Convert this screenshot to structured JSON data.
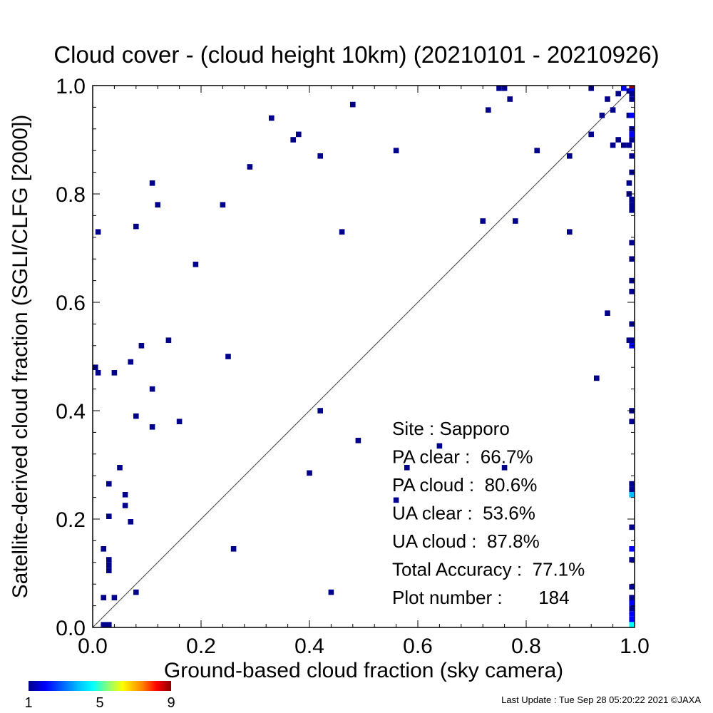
{
  "chart_data": {
    "type": "heatmap",
    "title": "Cloud cover - (cloud height 10km)  (20210101 - 20210926)",
    "xlabel": "Ground-based cloud fraction (sky camera)",
    "ylabel": "Satellite-derived cloud fraction (SGLI/CLFG [2000])",
    "xlim": [
      0.0,
      1.0
    ],
    "ylim": [
      0.0,
      1.0
    ],
    "x_ticks": [
      "0.0",
      "0.2",
      "0.4",
      "0.6",
      "0.8",
      "1.0"
    ],
    "y_ticks": [
      "0.0",
      "0.2",
      "0.4",
      "0.6",
      "0.8",
      "1.0"
    ],
    "grid": false,
    "reference_line": "1:1 diagonal",
    "colorbar": {
      "ticks": [
        "1",
        "5",
        "9"
      ],
      "range": [
        1,
        9
      ],
      "colors": [
        "#00008b",
        "#0000ff",
        "#00bfff",
        "#00ffff",
        "#7fff7f",
        "#ffff00",
        "#ff8000",
        "#ff0000",
        "#8b0000"
      ]
    },
    "stats": [
      {
        "label": "Site : ",
        "value": "Sapporo"
      },
      {
        "label": "PA clear :  ",
        "value": "66.7%"
      },
      {
        "label": "PA cloud :  ",
        "value": "80.6%"
      },
      {
        "label": "UA clear :  ",
        "value": "53.6%"
      },
      {
        "label": "UA cloud :  ",
        "value": "87.8%"
      },
      {
        "label": "Total Accuracy :  ",
        "value": "77.1%"
      },
      {
        "label": "Plot number :       ",
        "value": "184"
      }
    ],
    "points": [
      {
        "x": 0.0,
        "y": 0.48,
        "c": 1
      },
      {
        "x": 0.01,
        "y": 0.73,
        "c": 1
      },
      {
        "x": 0.01,
        "y": 0.47,
        "c": 1
      },
      {
        "x": 0.02,
        "y": 0.145,
        "c": 1
      },
      {
        "x": 0.02,
        "y": 0.055,
        "c": 1
      },
      {
        "x": 0.02,
        "y": 0.0,
        "c": 1
      },
      {
        "x": 0.03,
        "y": 0.265,
        "c": 1
      },
      {
        "x": 0.03,
        "y": 0.205,
        "c": 1
      },
      {
        "x": 0.03,
        "y": 0.125,
        "c": 1
      },
      {
        "x": 0.03,
        "y": 0.115,
        "c": 1
      },
      {
        "x": 0.03,
        "y": 0.105,
        "c": 1
      },
      {
        "x": 0.03,
        "y": 0.0,
        "c": 1
      },
      {
        "x": 0.04,
        "y": 0.47,
        "c": 1
      },
      {
        "x": 0.04,
        "y": 0.055,
        "c": 1
      },
      {
        "x": 0.05,
        "y": 0.295,
        "c": 1
      },
      {
        "x": 0.06,
        "y": 0.245,
        "c": 1
      },
      {
        "x": 0.06,
        "y": 0.225,
        "c": 1
      },
      {
        "x": 0.07,
        "y": 0.49,
        "c": 1
      },
      {
        "x": 0.07,
        "y": 0.195,
        "c": 1
      },
      {
        "x": 0.08,
        "y": 0.74,
        "c": 1
      },
      {
        "x": 0.08,
        "y": 0.39,
        "c": 1
      },
      {
        "x": 0.08,
        "y": 0.065,
        "c": 1
      },
      {
        "x": 0.09,
        "y": 0.52,
        "c": 1
      },
      {
        "x": 0.11,
        "y": 0.82,
        "c": 1
      },
      {
        "x": 0.11,
        "y": 0.44,
        "c": 1
      },
      {
        "x": 0.11,
        "y": 0.37,
        "c": 1
      },
      {
        "x": 0.12,
        "y": 0.78,
        "c": 1
      },
      {
        "x": 0.14,
        "y": 0.53,
        "c": 1
      },
      {
        "x": 0.16,
        "y": 0.38,
        "c": 1
      },
      {
        "x": 0.19,
        "y": 0.67,
        "c": 1
      },
      {
        "x": 0.24,
        "y": 0.78,
        "c": 1
      },
      {
        "x": 0.25,
        "y": 0.5,
        "c": 1
      },
      {
        "x": 0.26,
        "y": 0.145,
        "c": 1
      },
      {
        "x": 0.29,
        "y": 0.85,
        "c": 1
      },
      {
        "x": 0.33,
        "y": 0.94,
        "c": 1
      },
      {
        "x": 0.37,
        "y": 0.9,
        "c": 1
      },
      {
        "x": 0.38,
        "y": 0.91,
        "c": 1
      },
      {
        "x": 0.4,
        "y": 0.285,
        "c": 1
      },
      {
        "x": 0.42,
        "y": 0.87,
        "c": 1
      },
      {
        "x": 0.42,
        "y": 0.4,
        "c": 1
      },
      {
        "x": 0.44,
        "y": 0.065,
        "c": 1
      },
      {
        "x": 0.46,
        "y": 0.73,
        "c": 1
      },
      {
        "x": 0.48,
        "y": 0.965,
        "c": 1
      },
      {
        "x": 0.49,
        "y": 0.345,
        "c": 1
      },
      {
        "x": 0.56,
        "y": 0.88,
        "c": 1
      },
      {
        "x": 0.56,
        "y": 0.235,
        "c": 1
      },
      {
        "x": 0.58,
        "y": 0.295,
        "c": 1
      },
      {
        "x": 0.64,
        "y": 0.335,
        "c": 1
      },
      {
        "x": 0.72,
        "y": 0.75,
        "c": 1
      },
      {
        "x": 0.73,
        "y": 0.955,
        "c": 1
      },
      {
        "x": 0.75,
        "y": 1.0,
        "c": 1
      },
      {
        "x": 0.76,
        "y": 1.0,
        "c": 1
      },
      {
        "x": 0.76,
        "y": 0.295,
        "c": 1
      },
      {
        "x": 0.77,
        "y": 0.975,
        "c": 1
      },
      {
        "x": 0.78,
        "y": 0.75,
        "c": 1
      },
      {
        "x": 0.82,
        "y": 0.88,
        "c": 1
      },
      {
        "x": 0.88,
        "y": 0.87,
        "c": 1
      },
      {
        "x": 0.88,
        "y": 0.73,
        "c": 1
      },
      {
        "x": 0.92,
        "y": 1.0,
        "c": 1
      },
      {
        "x": 0.92,
        "y": 0.91,
        "c": 1
      },
      {
        "x": 0.93,
        "y": 0.46,
        "c": 1
      },
      {
        "x": 0.94,
        "y": 0.945,
        "c": 1
      },
      {
        "x": 0.95,
        "y": 0.975,
        "c": 1
      },
      {
        "x": 0.95,
        "y": 0.58,
        "c": 1
      },
      {
        "x": 0.96,
        "y": 0.955,
        "c": 1
      },
      {
        "x": 0.96,
        "y": 0.89,
        "c": 1
      },
      {
        "x": 0.97,
        "y": 0.985,
        "c": 1
      },
      {
        "x": 0.97,
        "y": 0.9,
        "c": 1
      },
      {
        "x": 0.98,
        "y": 1.0,
        "c": 2
      },
      {
        "x": 0.98,
        "y": 0.89,
        "c": 1
      },
      {
        "x": 0.99,
        "y": 0.99,
        "c": 1
      },
      {
        "x": 0.99,
        "y": 0.945,
        "c": 1
      },
      {
        "x": 0.99,
        "y": 0.89,
        "c": 1
      },
      {
        "x": 0.99,
        "y": 0.82,
        "c": 1
      },
      {
        "x": 0.99,
        "y": 0.8,
        "c": 1
      },
      {
        "x": 0.99,
        "y": 0.53,
        "c": 1
      },
      {
        "x": 1.0,
        "y": 1.0,
        "c": 9
      },
      {
        "x": 1.0,
        "y": 0.99,
        "c": 2
      },
      {
        "x": 1.0,
        "y": 0.985,
        "c": 1
      },
      {
        "x": 1.0,
        "y": 0.975,
        "c": 1
      },
      {
        "x": 1.0,
        "y": 0.945,
        "c": 2
      },
      {
        "x": 1.0,
        "y": 0.92,
        "c": 1
      },
      {
        "x": 1.0,
        "y": 0.91,
        "c": 2
      },
      {
        "x": 1.0,
        "y": 0.9,
        "c": 1
      },
      {
        "x": 1.0,
        "y": 0.87,
        "c": 1
      },
      {
        "x": 1.0,
        "y": 0.84,
        "c": 1
      },
      {
        "x": 1.0,
        "y": 0.79,
        "c": 1
      },
      {
        "x": 1.0,
        "y": 0.78,
        "c": 1
      },
      {
        "x": 1.0,
        "y": 0.77,
        "c": 1
      },
      {
        "x": 1.0,
        "y": 0.71,
        "c": 1
      },
      {
        "x": 1.0,
        "y": 0.68,
        "c": 1
      },
      {
        "x": 1.0,
        "y": 0.64,
        "c": 1
      },
      {
        "x": 1.0,
        "y": 0.62,
        "c": 1
      },
      {
        "x": 1.0,
        "y": 0.56,
        "c": 1
      },
      {
        "x": 1.0,
        "y": 0.53,
        "c": 1
      },
      {
        "x": 1.0,
        "y": 0.52,
        "c": 2
      },
      {
        "x": 1.0,
        "y": 0.4,
        "c": 1
      },
      {
        "x": 1.0,
        "y": 0.38,
        "c": 1
      },
      {
        "x": 1.0,
        "y": 0.265,
        "c": 1
      },
      {
        "x": 1.0,
        "y": 0.255,
        "c": 1
      },
      {
        "x": 1.0,
        "y": 0.245,
        "c": 3
      },
      {
        "x": 1.0,
        "y": 0.185,
        "c": 1
      },
      {
        "x": 1.0,
        "y": 0.145,
        "c": 2
      },
      {
        "x": 1.0,
        "y": 0.125,
        "c": 1
      },
      {
        "x": 1.0,
        "y": 0.075,
        "c": 1
      },
      {
        "x": 1.0,
        "y": 0.055,
        "c": 1
      },
      {
        "x": 1.0,
        "y": 0.045,
        "c": 2
      },
      {
        "x": 1.0,
        "y": 0.035,
        "c": 1
      },
      {
        "x": 1.0,
        "y": 0.025,
        "c": 2
      },
      {
        "x": 1.0,
        "y": 0.015,
        "c": 2
      },
      {
        "x": 1.0,
        "y": 0.005,
        "c": 4
      }
    ]
  },
  "footer": {
    "last_update": "Last Update : Tue Sep 28 05:20:22 2021  ©JAXA"
  }
}
